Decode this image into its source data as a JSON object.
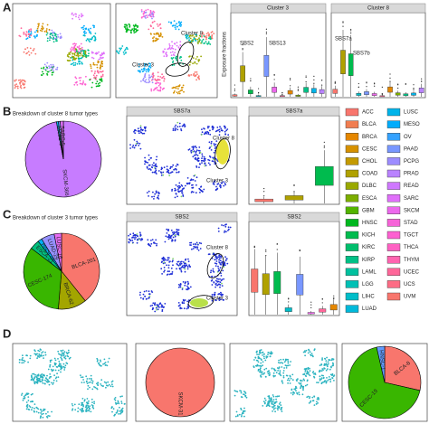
{
  "figure": {
    "letters": [
      "A",
      "B",
      "C",
      "D"
    ],
    "a_cluster8": "Cluster 8",
    "a_cluster3": "Cluster 3",
    "a_box1_title": "Cluster 3",
    "a_box2_title": "Cluster 8",
    "a_ylabel": "Exposure fractions",
    "a_box1_labels": [
      "SBS2",
      "SBS13"
    ],
    "a_box2_labels": [
      "SBS7a",
      "SBS7b"
    ],
    "b_tsne_title": "SBS7a",
    "b_box_title": "SBS7a",
    "b_cluster8": "Cluster 8",
    "b_cluster3": "Cluster 3",
    "c_tsne_title": "SBS2",
    "c_box_title": "SBS2",
    "c_cluster8": "Cluster 8",
    "c_cluster3": "Cluster 3"
  },
  "legend": {
    "names": [
      "ACC",
      "BLCA",
      "BRCA",
      "CESC",
      "CHOL",
      "COAD",
      "DLBC",
      "ESCA",
      "GBM",
      "HNSC",
      "KICH",
      "KIRC",
      "KIRP",
      "LAML",
      "LGG",
      "LIHC",
      "LUAD",
      "LUSC",
      "MESO",
      "OV",
      "PAAD",
      "PCPG",
      "PRAD",
      "READ",
      "SARC",
      "SKCM",
      "STAD",
      "TGCT",
      "THCA",
      "THYM",
      "UCEC",
      "UCS",
      "UVM"
    ],
    "colors": [
      "#f8766d",
      "#f17d50",
      "#e58700",
      "#d69100",
      "#c49a00",
      "#b0a100",
      "#99a800",
      "#7cae00",
      "#53b400",
      "#00b81f",
      "#00bb4e",
      "#00be6c",
      "#00c086",
      "#00c19f",
      "#00c0b5",
      "#00bdc9",
      "#00b9da",
      "#00b4ea",
      "#00acfc",
      "#35a2ff",
      "#7997ff",
      "#9c8cff",
      "#b983ff",
      "#cf78ff",
      "#e070fa",
      "#ed68ed",
      "#f663d8",
      "#fd61d1",
      "#ff61c3",
      "#ff64b0",
      "#ff679a",
      "#fd6c85",
      "#f8766d"
    ]
  },
  "chart_data": [
    {
      "type": "pie",
      "title": "Breakdown of cluster 8 tumor types",
      "categories": [
        "SKCM-366",
        "HNSC-3",
        "LUSC-3",
        "SARC-5"
      ],
      "values": [
        366,
        3,
        3,
        5
      ],
      "colors": [
        "#c77cff",
        "#00b4ea",
        "#7997ff",
        "#e070fa"
      ]
    },
    {
      "type": "pie",
      "title": "Breakdown of cluster 3 tumor types",
      "categories": [
        "BLCA-201",
        "BRCA-62",
        "CESC-174",
        "ESCA-21",
        "HNSC-9",
        "LUAD-29",
        "LUSC-16"
      ],
      "values": [
        201,
        62,
        174,
        21,
        9,
        29,
        16
      ],
      "colors": [
        "#f8766d",
        "#a3a500",
        "#39b600",
        "#00bf7d",
        "#00b0f6",
        "#9590ff",
        "#e76bf3"
      ]
    },
    {
      "type": "pie",
      "categories": [
        "SKCM-31"
      ],
      "values": [
        31
      ],
      "colors": [
        "#f8766d"
      ]
    },
    {
      "type": "pie",
      "categories": [
        "BLCA-8",
        "CESC-19",
        "HNSC-1"
      ],
      "values": [
        8,
        19,
        1
      ],
      "colors": [
        "#f8766d",
        "#39b600",
        "#619cff"
      ]
    }
  ]
}
